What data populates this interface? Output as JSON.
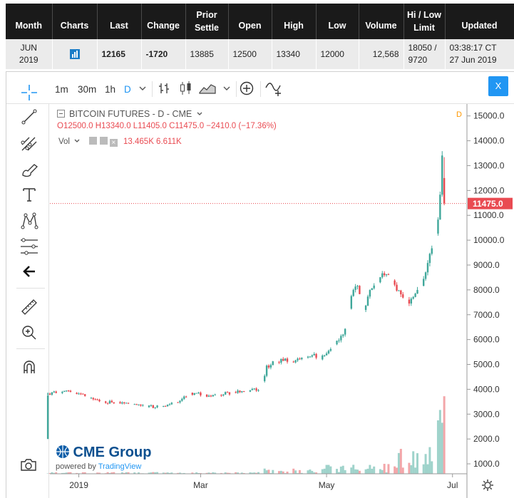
{
  "quote_table": {
    "headers": {
      "month": "Month",
      "charts": "Charts",
      "last": "Last",
      "change": "Change",
      "prior_settle": "Prior\nSettle",
      "open": "Open",
      "high": "High",
      "low": "Low",
      "volume": "Volume",
      "hilo": "Hi / Low\nLimit",
      "updated": "Updated"
    },
    "row": {
      "month": "JUN 2019",
      "last": "12165",
      "change": "-1720",
      "prior_settle": "13885",
      "open": "12500",
      "high": "13340",
      "low": "12000",
      "volume": "12,568",
      "hilo": "18050 /\n9720",
      "updated": "03:38:17 CT\n27 Jun 2019"
    }
  },
  "toolbar": {
    "intervals": [
      "1m",
      "30m",
      "1h",
      "D"
    ],
    "close_label": "X"
  },
  "legend": {
    "symbol": "BITCOIN FUTURES - D - CME",
    "ohlc": "O12500.0 H13340.0 L11405.0 C11475.0 −2410.0 (−17.36%)",
    "vol_label": "Vol",
    "vol_values": "13.465K 6.611K",
    "d_marker": "D"
  },
  "branding": {
    "logo": "CME Group",
    "powered_by": "powered by",
    "tradingview": "TradingView"
  },
  "colors": {
    "up": "#3fa79a",
    "down": "#e94b52",
    "up_vol": "#9fd3cb",
    "down_vol": "#f3a6a9",
    "accent": "#2196f3",
    "last_price": "#e94b52"
  },
  "icons": [
    "crosshair-icon",
    "trendline-icon",
    "pitchfork-icon",
    "brush-icon",
    "text-icon",
    "pattern-icon",
    "fib-icon",
    "back-arrow-icon",
    "ruler-icon",
    "zoom-in-icon",
    "magnet-icon",
    "camera-icon",
    "bar-type-icon",
    "candle-icon",
    "area-icon",
    "add-compare-icon",
    "indicator-icon",
    "settings-gear-icon"
  ],
  "chart_data": {
    "type": "candlestick",
    "price_axis": [
      "15000.0",
      "14000.0",
      "13000.0",
      "12000.0",
      "11000.0",
      "10000.0",
      "9000.0",
      "8000.0",
      "7000.0",
      "6000.0",
      "5000.0",
      "4000.0",
      "3000.0",
      "2000.0",
      "1000.0"
    ],
    "price_ticks": [
      15000,
      14000,
      13000,
      12000,
      11000,
      10000,
      9000,
      8000,
      7000,
      6000,
      5000,
      4000,
      3000,
      2000,
      1000
    ],
    "time_axis": [
      {
        "label": "2019",
        "x": "2019-01-01"
      },
      {
        "label": "Mar",
        "x": "2019-03-01"
      },
      {
        "label": "May",
        "x": "2019-05-01"
      },
      {
        "label": "Jul",
        "x": "2019-07-01"
      }
    ],
    "last_price": 11475.0,
    "last_price_label": "11475.0",
    "x_range": [
      "2018-12-18",
      "2019-07-08"
    ],
    "ylim": [
      600,
      15450
    ],
    "volume_scale_max": 4500,
    "closes": [
      [
        "2018-12-17",
        3800
      ],
      [
        "2018-12-20",
        3850
      ],
      [
        "2018-12-26",
        3900
      ],
      [
        "2018-12-31",
        3850
      ],
      [
        "2019-01-04",
        3750
      ],
      [
        "2019-01-09",
        3550
      ],
      [
        "2019-01-14",
        3480
      ],
      [
        "2019-01-18",
        3500
      ],
      [
        "2019-01-23",
        3450
      ],
      [
        "2019-01-28",
        3380
      ],
      [
        "2019-02-01",
        3350
      ],
      [
        "2019-02-06",
        3300
      ],
      [
        "2019-02-11",
        3350
      ],
      [
        "2019-02-15",
        3420
      ],
      [
        "2019-02-20",
        3600
      ],
      [
        "2019-02-24",
        3800
      ],
      [
        "2019-02-28",
        3820
      ],
      [
        "2019-03-05",
        3750
      ],
      [
        "2019-03-10",
        3800
      ],
      [
        "2019-03-15",
        3850
      ],
      [
        "2019-03-20",
        3900
      ],
      [
        "2019-03-25",
        3950
      ],
      [
        "2019-03-30",
        4050
      ],
      [
        "2019-04-02",
        4900
      ],
      [
        "2019-04-06",
        5100
      ],
      [
        "2019-04-10",
        5200
      ],
      [
        "2019-04-15",
        5100
      ],
      [
        "2019-04-19",
        5250
      ],
      [
        "2019-04-24",
        5400
      ],
      [
        "2019-04-28",
        5200
      ],
      [
        "2019-05-02",
        5500
      ],
      [
        "2019-05-06",
        5900
      ],
      [
        "2019-05-10",
        6400
      ],
      [
        "2019-05-13",
        7800
      ],
      [
        "2019-05-16",
        8100
      ],
      [
        "2019-05-19",
        7200
      ],
      [
        "2019-05-22",
        7900
      ],
      [
        "2019-05-26",
        8200
      ],
      [
        "2019-05-29",
        8700
      ],
      [
        "2019-06-01",
        8600
      ],
      [
        "2019-06-04",
        8100
      ],
      [
        "2019-06-07",
        7800
      ],
      [
        "2019-06-10",
        7500
      ],
      [
        "2019-06-13",
        7900
      ],
      [
        "2019-06-16",
        8100
      ],
      [
        "2019-06-19",
        9200
      ],
      [
        "2019-06-22",
        10000
      ],
      [
        "2019-06-24",
        10800
      ],
      [
        "2019-06-26",
        13200
      ],
      [
        "2019-06-27",
        11475
      ]
    ]
  }
}
